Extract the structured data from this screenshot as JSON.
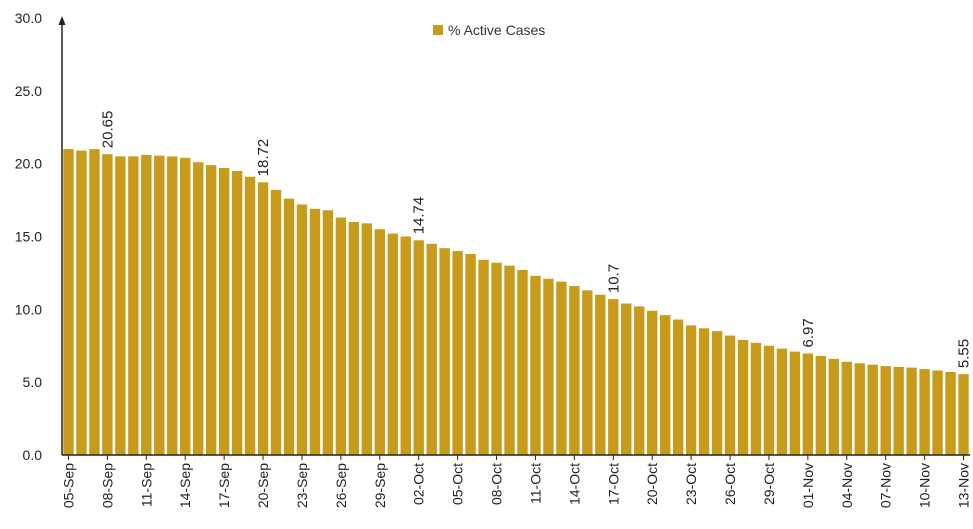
{
  "chart_data": {
    "type": "bar",
    "legend": {
      "label": "% Active Cases",
      "placement": "top-center"
    },
    "colors": {
      "bar": "#c89b1a",
      "axis": "#222222",
      "text": "#222222"
    },
    "ylim": [
      0,
      30
    ],
    "yticks": [
      "0.0",
      "5.0",
      "10.0",
      "15.0",
      "20.0",
      "25.0",
      "30.0"
    ],
    "grid": false,
    "categories": [
      "05-Sep",
      "06-Sep",
      "07-Sep",
      "08-Sep",
      "09-Sep",
      "10-Sep",
      "11-Sep",
      "12-Sep",
      "13-Sep",
      "14-Sep",
      "15-Sep",
      "16-Sep",
      "17-Sep",
      "18-Sep",
      "19-Sep",
      "20-Sep",
      "21-Sep",
      "22-Sep",
      "23-Sep",
      "24-Sep",
      "25-Sep",
      "26-Sep",
      "27-Sep",
      "28-Sep",
      "29-Sep",
      "30-Sep",
      "01-Oct",
      "02-Oct",
      "03-Oct",
      "04-Oct",
      "05-Oct",
      "06-Oct",
      "07-Oct",
      "08-Oct",
      "09-Oct",
      "10-Oct",
      "11-Oct",
      "12-Oct",
      "13-Oct",
      "14-Oct",
      "15-Oct",
      "16-Oct",
      "17-Oct",
      "18-Oct",
      "19-Oct",
      "20-Oct",
      "21-Oct",
      "22-Oct",
      "23-Oct",
      "24-Oct",
      "25-Oct",
      "26-Oct",
      "27-Oct",
      "28-Oct",
      "29-Oct",
      "30-Oct",
      "31-Oct",
      "01-Nov",
      "02-Nov",
      "03-Nov",
      "04-Nov",
      "05-Nov",
      "06-Nov",
      "07-Nov",
      "08-Nov",
      "09-Nov",
      "10-Nov",
      "11-Nov",
      "12-Nov",
      "13-Nov"
    ],
    "xtick_labels": [
      "05-Sep",
      "08-Sep",
      "11-Sep",
      "14-Sep",
      "17-Sep",
      "20-Sep",
      "23-Sep",
      "26-Sep",
      "29-Sep",
      "02-Oct",
      "05-Oct",
      "08-Oct",
      "11-Oct",
      "14-Oct",
      "17-Oct",
      "20-Oct",
      "23-Oct",
      "26-Oct",
      "29-Oct",
      "01-Nov",
      "04-Nov",
      "07-Nov",
      "10-Nov",
      "13-Nov"
    ],
    "series": [
      {
        "name": "% Active Cases",
        "values": [
          21.0,
          20.9,
          21.0,
          20.65,
          20.5,
          20.5,
          20.6,
          20.55,
          20.5,
          20.4,
          20.1,
          19.9,
          19.7,
          19.5,
          19.1,
          18.72,
          18.2,
          17.6,
          17.2,
          16.9,
          16.8,
          16.3,
          16.0,
          15.9,
          15.5,
          15.2,
          15.0,
          14.74,
          14.5,
          14.2,
          14.0,
          13.8,
          13.4,
          13.2,
          13.0,
          12.7,
          12.3,
          12.1,
          11.9,
          11.6,
          11.3,
          11.0,
          10.7,
          10.4,
          10.2,
          9.9,
          9.6,
          9.3,
          8.9,
          8.7,
          8.5,
          8.2,
          7.9,
          7.7,
          7.5,
          7.3,
          7.1,
          6.97,
          6.8,
          6.6,
          6.4,
          6.3,
          6.2,
          6.1,
          6.05,
          6.0,
          5.9,
          5.8,
          5.7,
          5.55
        ]
      }
    ],
    "data_labels": [
      {
        "category": "08-Sep",
        "text": "20.65"
      },
      {
        "category": "20-Sep",
        "text": "18.72"
      },
      {
        "category": "02-Oct",
        "text": "14.74"
      },
      {
        "category": "17-Oct",
        "text": "10.7"
      },
      {
        "category": "01-Nov",
        "text": "6.97"
      },
      {
        "category": "13-Nov",
        "text": "5.55"
      }
    ]
  }
}
